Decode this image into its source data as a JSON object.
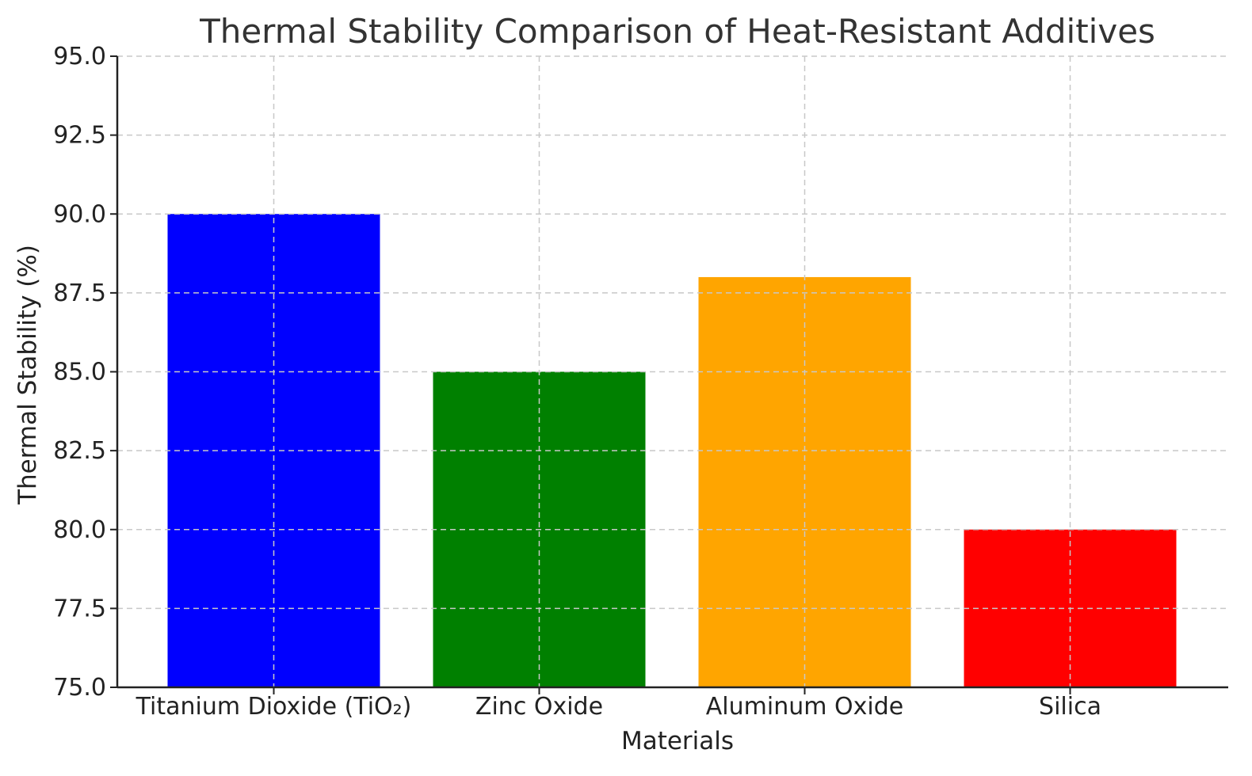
{
  "chart_data": {
    "type": "bar",
    "title": "Thermal Stability Comparison of Heat-Resistant Additives",
    "xlabel": "Materials",
    "ylabel": "Thermal Stability (%)",
    "categories": [
      "Titanium Dioxide (TiO₂)",
      "Zinc Oxide",
      "Aluminum Oxide",
      "Silica"
    ],
    "values": [
      90,
      85,
      88,
      80
    ],
    "colors": [
      "#0000ff",
      "#008000",
      "#ffa500",
      "#ff0000"
    ],
    "ylim": [
      75,
      95
    ],
    "yticks": [
      75.0,
      77.5,
      80.0,
      82.5,
      85.0,
      87.5,
      90.0,
      92.5,
      95.0
    ],
    "ytick_labels": [
      "75.0",
      "77.5",
      "80.0",
      "82.5",
      "85.0",
      "87.5",
      "90.0",
      "92.5",
      "95.0"
    ],
    "grid": true,
    "legend": "none"
  }
}
